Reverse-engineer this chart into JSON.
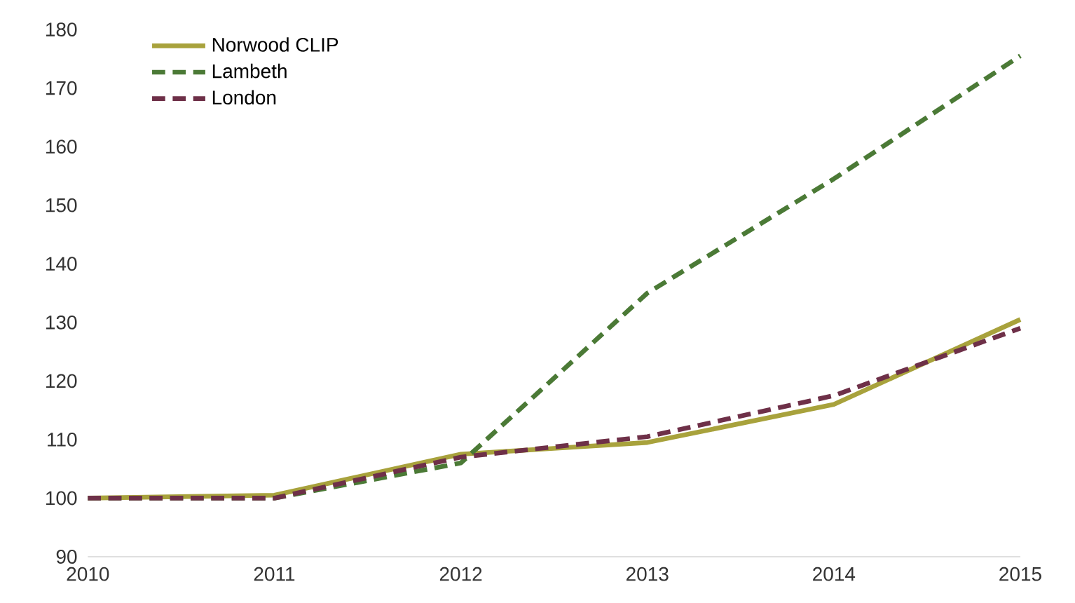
{
  "chart_data": {
    "type": "line",
    "x": [
      2010,
      2011,
      2012,
      2013,
      2014,
      2015
    ],
    "series": [
      {
        "name": "Norwood CLIP",
        "color": "#a8a23c",
        "line_style": "solid",
        "values": [
          100,
          100.5,
          107.5,
          109.5,
          116,
          130.5
        ]
      },
      {
        "name": "Lambeth",
        "color": "#4b7a36",
        "line_style": "dashed",
        "values": [
          100,
          100,
          106,
          135,
          154.5,
          175.5
        ]
      },
      {
        "name": "London",
        "color": "#6e3048",
        "line_style": "dashed",
        "values": [
          100,
          100,
          107,
          110.5,
          117.5,
          129
        ]
      }
    ],
    "xlim": [
      2010,
      2015
    ],
    "xticks": [
      2010,
      2011,
      2012,
      2013,
      2014,
      2015
    ],
    "ylim": [
      90,
      180
    ],
    "yticks": [
      90,
      100,
      110,
      120,
      130,
      140,
      150,
      160,
      170,
      180
    ],
    "grid": false,
    "legend": "top left",
    "marker": "none"
  }
}
